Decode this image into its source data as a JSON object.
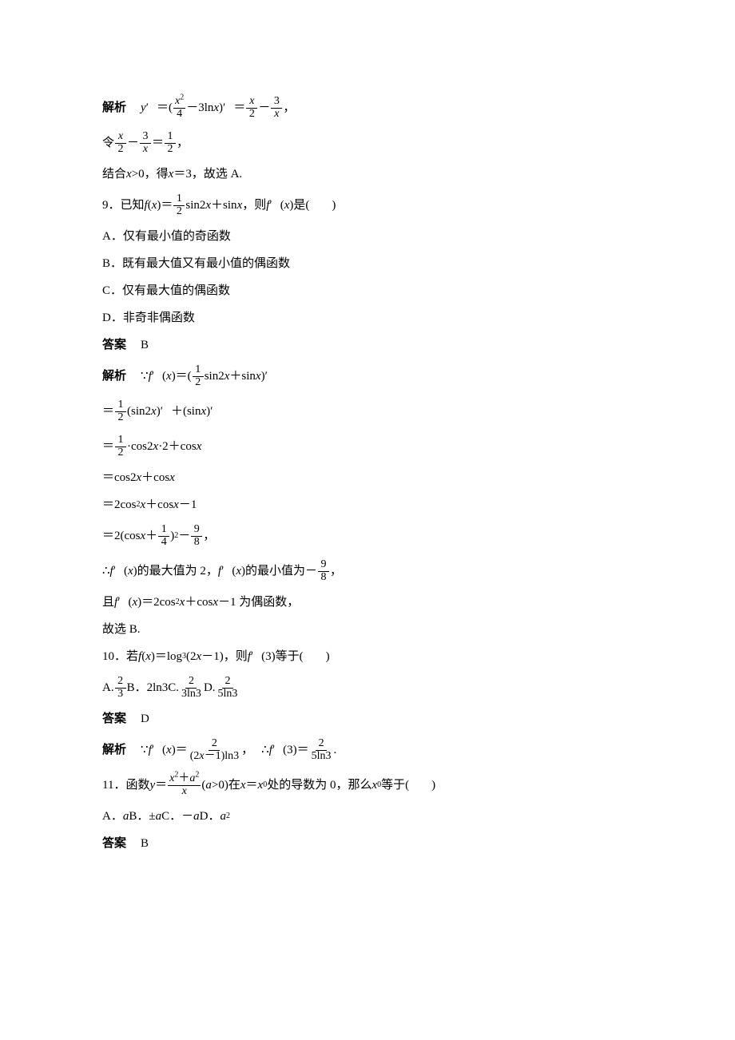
{
  "colors": {
    "text": "#000000",
    "background": "#ffffff",
    "rule": "#000000"
  },
  "typography": {
    "body_family": "Times New Roman / SimSun",
    "body_size_pt": 11,
    "frac_size_pt": 10,
    "script_size_pt": 7
  },
  "p8_label": "解析",
  "p8_y": "y",
  "p8_prime": "′",
  "p8_eq": "＝(",
  "p8_f1_num_x": "x",
  "p8_f1_num_sq": "2",
  "p8_f1_den": "4",
  "p8_mid": "－3ln",
  "p8_x": "x",
  "p8_close": ")",
  "p8_eq2": "＝",
  "p8_f2_num": "x",
  "p8_f2_den": "2",
  "p8_minus": "－",
  "p8_f3_num": "3",
  "p8_f3_den": "x",
  "p8_comma": "，",
  "p8b_ling": "令",
  "p8b_f1_num": "x",
  "p8b_f1_den": "2",
  "p8b_minus": "－",
  "p8b_f2_num": "3",
  "p8b_f2_den": "x",
  "p8b_eq": "＝",
  "p8b_f3_num": "1",
  "p8b_f3_den": "2",
  "p8b_comma": "，",
  "p8c": "结合 ",
  "p8c_x": "x",
  "p8c_rest": ">0，得 ",
  "p8c_x2": "x",
  "p8c_end": "＝3，故选 A.",
  "q9_num": "9．已知 ",
  "q9_f": "f",
  "q9_paren": "(",
  "q9_x": "x",
  "q9_close": ")＝",
  "q9_f1_num": "1",
  "q9_f1_den": "2",
  "q9_mid": "sin2",
  "q9_x2": "x",
  "q9_plus": "＋sin",
  "q9_x3": "x",
  "q9_then": "，则 ",
  "q9_fp": "f",
  "q9_prime": "′",
  "q9_px": "(",
  "q9_pxv": "x",
  "q9_pend": ")是(",
  "q9_blank_close": ")",
  "q9A": "A．仅有最小值的奇函数",
  "q9B": "B．既有最大值又有最小值的偶函数",
  "q9C": "C．仅有最大值的偶函数",
  "q9D": "D．非奇非偶函数",
  "q9_ans_label": "答案",
  "q9_ans": "B",
  "e9_label": "解析",
  "e9_pre": "∵",
  "e9_f": "f",
  "e9_prime": "′",
  "e9_lp": "(",
  "e9_x": "x",
  "e9_rp": ")＝(",
  "e9_f1_num": "1",
  "e9_f1_den": "2",
  "e9_mid": "sin2",
  "e9_x2": "x",
  "e9_plus": "＋sin",
  "e9_x3": "x",
  "e9_end": ")",
  "e9a_eq": "＝",
  "e9a_f_num": "1",
  "e9a_f_den": "2",
  "e9a_mid": "(sin2",
  "e9a_x": "x",
  "e9a_rp": ")",
  "e9a_pr": "′",
  "e9a_plus": "＋(sin",
  "e9a_x2": "x",
  "e9a_rp2": ")",
  "e9b_eq": "＝",
  "e9b_f_num": "1",
  "e9b_f_den": "2",
  "e9b_mid": "·cos2",
  "e9b_x": "x",
  "e9b_dot": "·2＋cos",
  "e9b_x2": "x",
  "e9c": "＝cos2",
  "e9c_x": "x",
  "e9c_plus": "＋cos",
  "e9c_x2": "x",
  "e9d_eq": "＝2cos",
  "e9d_sq": "2",
  "e9d_x": "x",
  "e9d_plus": "＋cos",
  "e9d_x2": "x",
  "e9d_end": "－1",
  "e9e_eq": "＝2(cos",
  "e9e_x": "x",
  "e9e_plus": "＋",
  "e9e_f1_num": "1",
  "e9e_f1_den": "4",
  "e9e_rp": ")",
  "e9e_sq": "2",
  "e9e_minus": "－",
  "e9e_f2_num": "9",
  "e9e_f2_den": "8",
  "e9e_comma": "，",
  "e9f_pre": "∴",
  "e9f_f": "f",
  "e9f_pr": "′",
  "e9f_lp": "(",
  "e9f_x": "x",
  "e9f_rp": ")的最大值为 2，",
  "e9f_f2": "f",
  "e9f_pr2": "′",
  "e9f_lp2": "(",
  "e9f_x2": "x",
  "e9f_rp2": ")的最小值为－",
  "e9f_fn_num": "9",
  "e9f_fn_den": "8",
  "e9f_comma": "，",
  "e9g_pre": "且 ",
  "e9g_f": "f",
  "e9g_pr": "′",
  "e9g_lp": "(",
  "e9g_x": "x",
  "e9g_rp": ")＝2cos",
  "e9g_sq": "2",
  "e9g_x2": "x",
  "e9g_plus": "＋cos",
  "e9g_x3": "x",
  "e9g_end": "－1 为偶函数，",
  "e9h": "故选 B.",
  "q10_pre": "10．若 ",
  "q10_f": "f",
  "q10_lp": "(",
  "q10_x": "x",
  "q10_rp": ")＝log",
  "q10_sub": "3",
  "q10_arg": "(2",
  "q10_x2": "x",
  "q10_argend": "－1)，则 ",
  "q10_fp": "f",
  "q10_pr": "′",
  "q10_fplp": "(3)等于(",
  "q10_close": ")",
  "q10A_l": "A.",
  "q10A_num": "2",
  "q10A_den": "3",
  "q10B_l": "B．",
  "q10B_v": "2ln3",
  "q10C_l": "C.",
  "q10C_num": "2",
  "q10C_den": "3ln3",
  "q10D_l": "D.",
  "q10D_num": "2",
  "q10D_den": "5ln3",
  "q10_ans_label": "答案",
  "q10_ans": "D",
  "e10_label": "解析",
  "e10_pre": "∵",
  "e10_f": "f",
  "e10_pr": "′",
  "e10_lp": "(",
  "e10_x": "x",
  "e10_rp": ")＝",
  "e10_f1_num": "2",
  "e10_f1_den_l": "(2",
  "e10_f1_den_x": "x",
  "e10_f1_den_r": "－1)ln3",
  "e10_comma": "，",
  "e10_so": "∴",
  "e10_f2": "f",
  "e10_pr2": "′",
  "e10_arg": "(3)＝",
  "e10_f2_num": "2",
  "e10_f2_den": "5ln3",
  "e10_dot": ".",
  "q11_pre": "11．函数 ",
  "q11_y": "y",
  "q11_eq": "＝",
  "q11_num_l": "x",
  "q11_num_sq": "2",
  "q11_num_plus": "＋",
  "q11_num_a": "a",
  "q11_num_sq2": "2",
  "q11_den": "x",
  "q11_cond": "(",
  "q11_a": "a",
  "q11_cond2": ">0)在 ",
  "q11_x": "x",
  "q11_eq2": "＝",
  "q11_x0": "x",
  "q11_sub0": "0",
  "q11_mid": " 处的导数为 0，那么 ",
  "q11_x02": "x",
  "q11_sub02": "0",
  "q11_end": " 等于(",
  "q11_close": ")",
  "q11A_l": "A．",
  "q11A_v": "a",
  "q11B_l": "B．",
  "q11B_v": "±",
  "q11B_a": "a",
  "q11C_l": "C．",
  "q11C_v": "－",
  "q11C_a": "a",
  "q11D_l": "D．",
  "q11D_a": "a",
  "q11D_sq": "2",
  "q11_ans_label": "答案",
  "q11_ans": "B"
}
